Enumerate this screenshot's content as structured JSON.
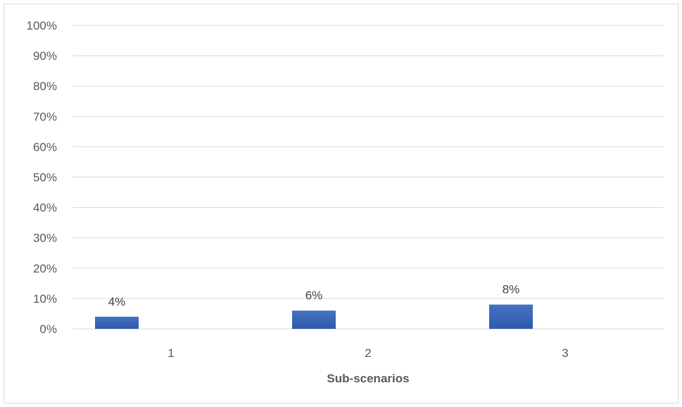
{
  "chart_data": {
    "type": "bar",
    "categories": [
      "1",
      "2",
      "3"
    ],
    "series": [
      {
        "values": [
          0.04,
          0.06,
          0.08
        ],
        "data_labels": [
          "4%",
          "6%",
          "8%"
        ],
        "color": "#4472c4"
      }
    ],
    "xlabel": "Sub-scenarios",
    "ylabel": "",
    "ylim": [
      0,
      1
    ],
    "yticks": [
      0,
      0.1,
      0.2,
      0.3,
      0.4,
      0.5,
      0.6,
      0.7,
      0.8,
      0.9,
      1.0
    ],
    "ytick_labels": [
      "0%",
      "10%",
      "20%",
      "30%",
      "40%",
      "50%",
      "60%",
      "70%",
      "80%",
      "90%",
      "100%"
    ],
    "grid": true,
    "gridline_color": "#d9d9d9",
    "bar_color_top": "#4472c4",
    "bar_color_bottom": "#2f5aa8"
  }
}
